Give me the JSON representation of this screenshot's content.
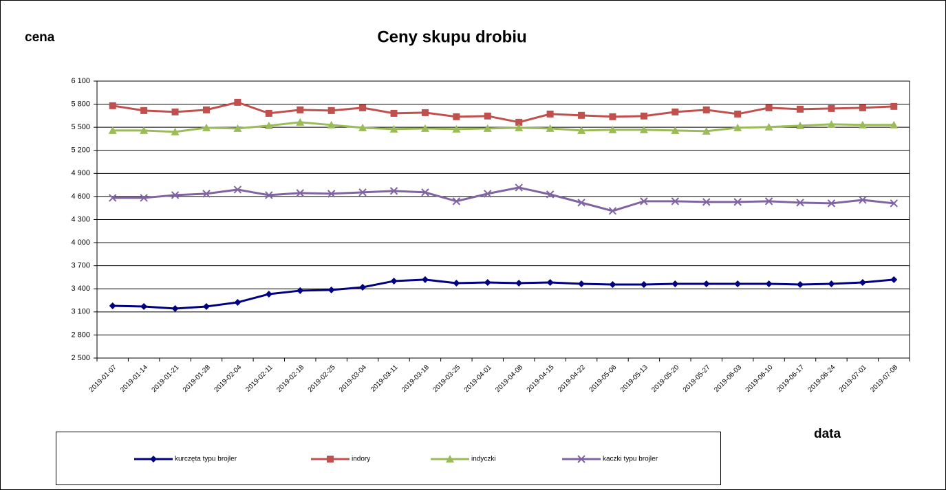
{
  "chart_data": {
    "type": "line",
    "title": "Ceny skupu drobiu",
    "y_label": "cena",
    "x_label": "data",
    "categories": [
      "2019-01-07",
      "2019-01-14",
      "2019-01-21",
      "2019-01-28",
      "2019-02-04",
      "2019-02-11",
      "2019-02-18",
      "2019-02-25",
      "2019-03-04",
      "2019-03-11",
      "2019-03-18",
      "2019-03-25",
      "2019-04-01",
      "2019-04-08",
      "2019-04-15",
      "2019-04-22",
      "2019-05-06",
      "2019-05-13",
      "2019-05-20",
      "2019-05-27",
      "2019-06-03",
      "2019-06-10",
      "2019-06-17",
      "2019-06-24",
      "2019-07-01",
      "2019-07-08"
    ],
    "series": [
      {
        "name": "kurczęta typu brojler",
        "color": "#000080",
        "marker": "diamond",
        "values": [
          3179,
          3170,
          3143,
          3170,
          3224,
          3331,
          3376,
          3385,
          3420,
          3501,
          3519,
          3474,
          3483,
          3474,
          3483,
          3465,
          3456,
          3456,
          3465,
          3465,
          3465,
          3465,
          3456,
          3465,
          3483,
          3519
        ]
      },
      {
        "name": "indory",
        "color": "#c0504d",
        "marker": "square",
        "values": [
          5780,
          5717,
          5699,
          5726,
          5824,
          5681,
          5726,
          5717,
          5753,
          5681,
          5690,
          5637,
          5646,
          5565,
          5672,
          5655,
          5637,
          5646,
          5699,
          5726,
          5672,
          5753,
          5735,
          5744,
          5753,
          5771
        ]
      },
      {
        "name": "indyczki",
        "color": "#9bbb59",
        "marker": "triangle",
        "values": [
          5458,
          5458,
          5440,
          5494,
          5485,
          5521,
          5565,
          5530,
          5494,
          5476,
          5485,
          5476,
          5485,
          5494,
          5485,
          5458,
          5467,
          5467,
          5458,
          5449,
          5494,
          5503,
          5521,
          5538,
          5530,
          5530
        ]
      },
      {
        "name": "kaczki typu brojler",
        "color": "#8064a2",
        "marker": "cross",
        "values": [
          4582,
          4582,
          4618,
          4636,
          4689,
          4618,
          4645,
          4636,
          4654,
          4672,
          4654,
          4538,
          4636,
          4716,
          4627,
          4520,
          4412,
          4538,
          4538,
          4529,
          4529,
          4538,
          4520,
          4511,
          4555,
          4511
        ]
      }
    ],
    "ylim": [
      2500,
      6100
    ],
    "yticks": [
      {
        "value": 2500,
        "label": "2 500"
      },
      {
        "value": 2800,
        "label": "2 800"
      },
      {
        "value": 3100,
        "label": "3 100"
      },
      {
        "value": 3400,
        "label": "3 400"
      },
      {
        "value": 3700,
        "label": "3 700"
      },
      {
        "value": 4000,
        "label": "4 000"
      },
      {
        "value": 4300,
        "label": "4 300"
      },
      {
        "value": 4600,
        "label": "4 600"
      },
      {
        "value": 4900,
        "label": "4 900"
      },
      {
        "value": 5200,
        "label": "5 200"
      },
      {
        "value": 5500,
        "label": "5 500"
      },
      {
        "value": 5800,
        "label": "5 800"
      },
      {
        "value": 6100,
        "label": "6 100"
      }
    ],
    "grid": true,
    "legend": "bottom"
  }
}
